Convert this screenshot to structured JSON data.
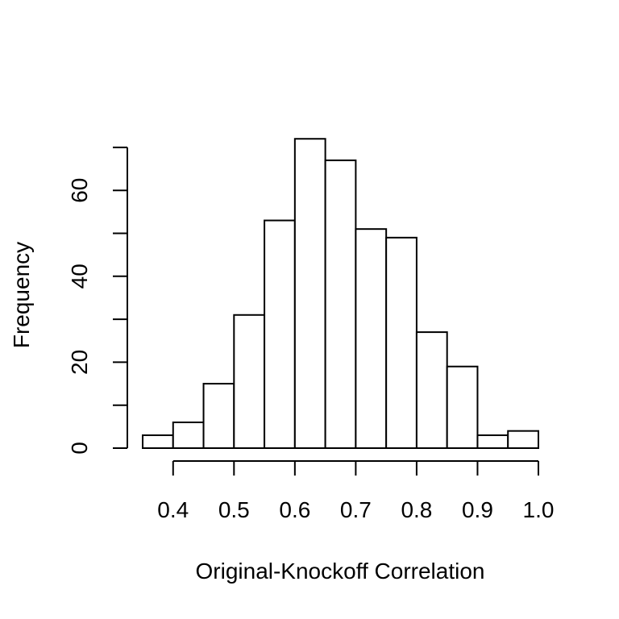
{
  "chart_data": {
    "type": "bar",
    "title": "",
    "xlabel": "Original-Knockoff Correlation",
    "ylabel": "Frequency",
    "bins": [
      {
        "start": 0.35,
        "end": 0.4,
        "count": 3
      },
      {
        "start": 0.4,
        "end": 0.45,
        "count": 6
      },
      {
        "start": 0.45,
        "end": 0.5,
        "count": 15
      },
      {
        "start": 0.5,
        "end": 0.55,
        "count": 31
      },
      {
        "start": 0.55,
        "end": 0.6,
        "count": 53
      },
      {
        "start": 0.6,
        "end": 0.65,
        "count": 72
      },
      {
        "start": 0.65,
        "end": 0.7,
        "count": 67
      },
      {
        "start": 0.7,
        "end": 0.75,
        "count": 51
      },
      {
        "start": 0.75,
        "end": 0.8,
        "count": 49
      },
      {
        "start": 0.8,
        "end": 0.85,
        "count": 27
      },
      {
        "start": 0.85,
        "end": 0.9,
        "count": 19
      },
      {
        "start": 0.9,
        "end": 0.95,
        "count": 3
      },
      {
        "start": 0.95,
        "end": 1.0,
        "count": 4
      }
    ],
    "xticks": [
      0.4,
      0.5,
      0.6,
      0.7,
      0.8,
      0.9,
      1.0
    ],
    "xtick_labels": [
      "0.4",
      "0.5",
      "0.6",
      "0.7",
      "0.8",
      "0.9",
      "1.0"
    ],
    "yticks": [
      0,
      10,
      20,
      30,
      40,
      50,
      60,
      70
    ],
    "ytick_labels": [
      "0",
      "",
      "20",
      "",
      "40",
      "",
      "60",
      ""
    ],
    "xlim": [
      0.35,
      1.0
    ],
    "ylim": [
      0,
      70
    ],
    "grid": false,
    "bar_fill": "#ffffff",
    "bar_stroke": "#000000"
  }
}
